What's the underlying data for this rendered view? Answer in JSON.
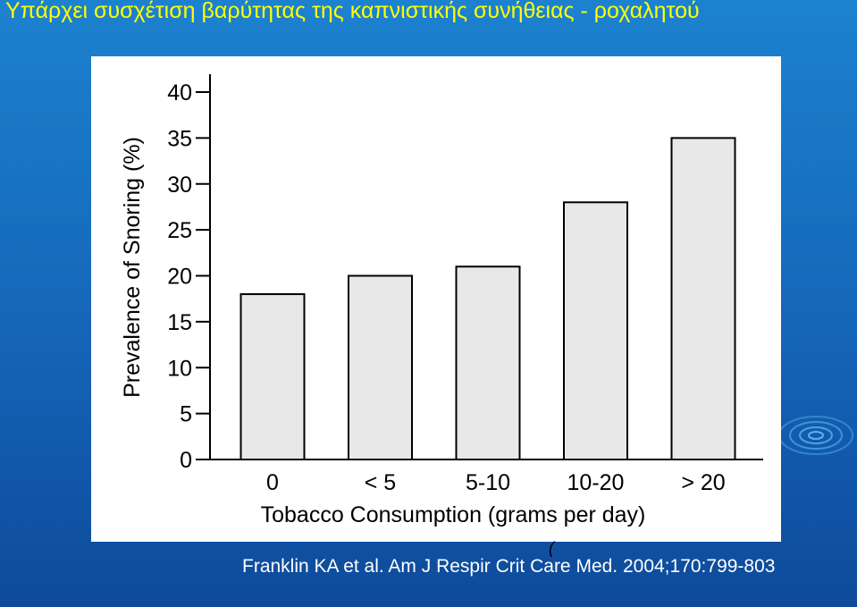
{
  "slide": {
    "title": "Υπάρχει συσχέτιση βαρύτητας της καπνιστικής συνήθειας - ροχαλητού",
    "citation": "Franklin KA et al. Am J Respir Crit Care Med. 2004;170:799-803",
    "cursor_glyph": "(",
    "colors": {
      "background": "#1a78c8",
      "title": "#ffff00",
      "citation": "#ffffff"
    }
  },
  "chart_data": {
    "type": "bar",
    "title": "",
    "categories": [
      "0",
      "< 5",
      "5-10",
      "10-20",
      "> 20"
    ],
    "values": [
      18,
      20,
      21,
      28,
      35
    ],
    "xlabel": "Tobacco Consumption (grams per day)",
    "ylabel": "Prevalence of Snoring (%)",
    "ylim": [
      0,
      40
    ],
    "yticks": [
      0,
      5,
      10,
      15,
      20,
      25,
      30,
      35,
      40
    ],
    "grid": false,
    "bar_color": "#e8e8e8",
    "bar_edge_color": "#000000"
  }
}
